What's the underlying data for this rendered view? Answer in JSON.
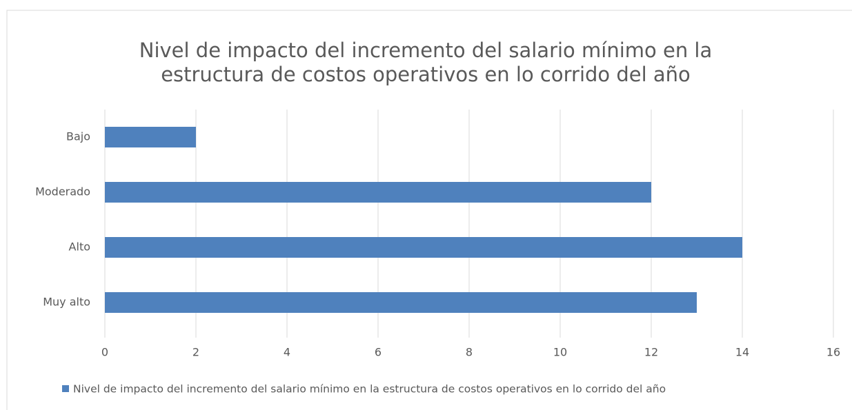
{
  "chart_data": {
    "type": "bar",
    "orientation": "horizontal",
    "title": [
      "Nivel de impacto del incremento del salario mínimo en la",
      "estructura de costos operativos en lo corrido del año"
    ],
    "categories": [
      "Bajo",
      "Moderado",
      "Alto",
      "Muy alto"
    ],
    "series": [
      {
        "name": "Nivel de impacto del incremento del salario mínimo en la estructura de costos operativos en lo corrido del año",
        "color": "#4f81bd",
        "values": [
          2,
          12,
          14,
          13
        ]
      }
    ],
    "xlim": [
      0,
      16
    ],
    "xticks": [
      0,
      2,
      4,
      6,
      8,
      10,
      12,
      14,
      16
    ],
    "grid": true,
    "legend": "bottom"
  }
}
